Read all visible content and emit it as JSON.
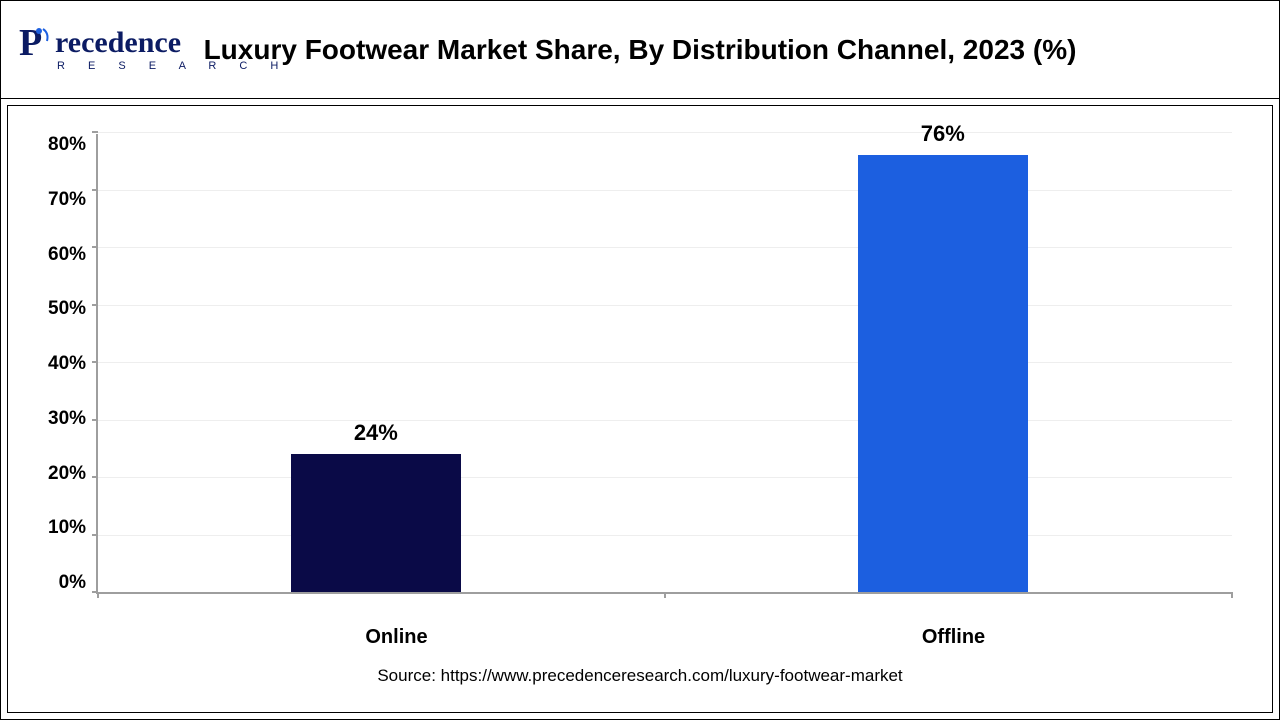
{
  "logo": {
    "brand_main": "recedence",
    "brand_sub": "R E S E A R C H",
    "color": "#0b1b63"
  },
  "chart": {
    "type": "bar",
    "title": "Luxury Footwear Market Share, By Distribution Channel, 2023 (%)",
    "title_fontsize": 28,
    "categories": [
      "Online",
      "Offline"
    ],
    "values": [
      24,
      76
    ],
    "value_labels": [
      "24%",
      "76%"
    ],
    "bar_colors": [
      "#0a0a47",
      "#1c5fe0"
    ],
    "bar_width_pct": 15,
    "bar_positions_pct": [
      17,
      67
    ],
    "ylim": [
      0,
      80
    ],
    "ytick_step": 10,
    "ytick_labels": [
      "80%",
      "70%",
      "60%",
      "50%",
      "40%",
      "30%",
      "20%",
      "10%",
      "0%"
    ],
    "y_max": 80,
    "label_fontsize": 20,
    "value_fontsize": 22,
    "axis_fontsize": 19,
    "grid_color": "#eeeeee",
    "axis_color": "#9e9e9e",
    "background_color": "#ffffff"
  },
  "source": "Source: https://www.precedenceresearch.com/luxury-footwear-market"
}
